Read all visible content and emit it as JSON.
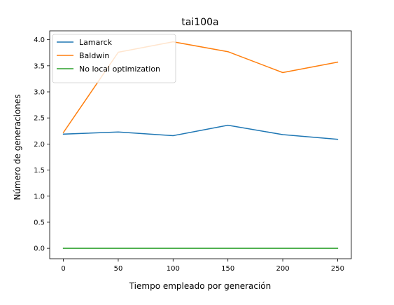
{
  "chart_data": {
    "type": "line",
    "title": "tai100a",
    "xlabel": "Tiempo empleado por generación",
    "ylabel": "Número de generaciones",
    "x": [
      0,
      50,
      100,
      150,
      200,
      250
    ],
    "xticks": [
      0,
      50,
      100,
      150,
      200,
      250
    ],
    "yticks": [
      0.0,
      0.5,
      1.0,
      1.5,
      2.0,
      2.5,
      3.0,
      3.5,
      4.0
    ],
    "xlim": [
      -12.5,
      262.5
    ],
    "ylim": [
      -0.2,
      4.17
    ],
    "grid": false,
    "legend_position": "top-left",
    "series": [
      {
        "name": "Lamarck",
        "color": "#1f77b4",
        "values": [
          2.19,
          2.23,
          2.16,
          2.36,
          2.18,
          2.09
        ]
      },
      {
        "name": "Baldwin",
        "color": "#ff7f0e",
        "values": [
          2.22,
          3.76,
          3.96,
          3.77,
          3.37,
          3.57
        ]
      },
      {
        "name": "No local optimization",
        "color": "#2ca02c",
        "values": [
          0.0,
          0.0,
          0.0,
          0.0,
          0.0,
          0.0
        ]
      }
    ]
  }
}
